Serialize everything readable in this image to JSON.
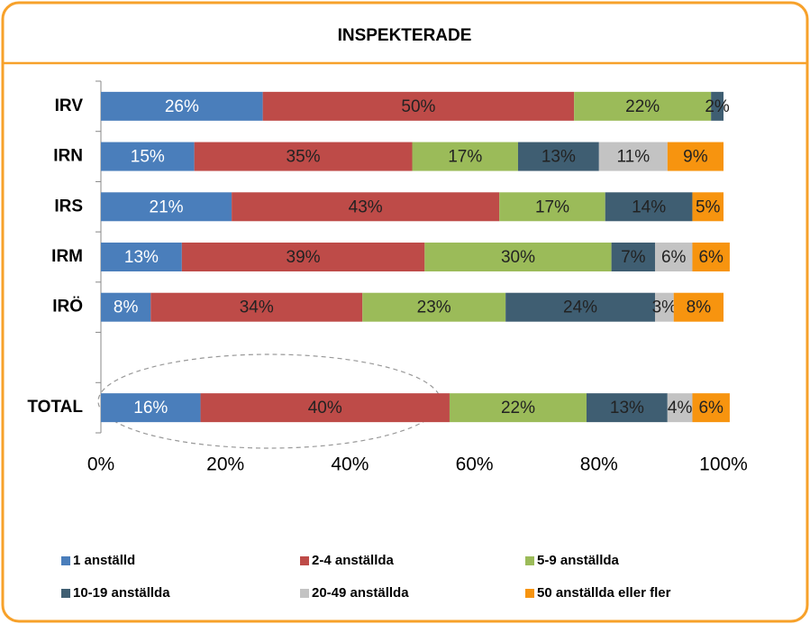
{
  "chart_data": {
    "type": "stacked_bar_horizontal",
    "title": "INSPEKTERADE",
    "categories": [
      "IRV",
      "IRN",
      "IRS",
      "IRM",
      "IRÖ",
      null,
      "TOTAL"
    ],
    "series": [
      {
        "name": "1 anställd",
        "color": "#4a7ebb",
        "values": [
          26,
          15,
          21,
          13,
          8,
          null,
          16
        ],
        "value_labels": [
          "26%",
          "15%",
          "21%",
          "13%",
          "8%",
          null,
          "16%"
        ]
      },
      {
        "name": "2-4 anställda",
        "color": "#be4b48",
        "values": [
          50,
          35,
          43,
          39,
          34,
          null,
          40
        ],
        "value_labels": [
          "50%",
          "35%",
          "43%",
          "39%",
          "34%",
          null,
          "40%"
        ]
      },
      {
        "name": "5-9 anställda",
        "color": "#9bbb59",
        "values": [
          22,
          17,
          17,
          30,
          23,
          null,
          22
        ],
        "value_labels": [
          "22%",
          "17%",
          "17%",
          "30%",
          "23%",
          null,
          "22%"
        ]
      },
      {
        "name": "10-19 anställda",
        "color": "#3f5e72",
        "values": [
          2,
          13,
          14,
          7,
          24,
          null,
          13
        ],
        "value_labels": [
          "2%",
          "13%",
          "14%",
          "7%",
          "24%",
          null,
          "13%"
        ]
      },
      {
        "name": "20-49 anställda",
        "color": "#c3c3c3",
        "values": [
          null,
          11,
          null,
          6,
          3,
          null,
          4
        ],
        "value_labels": [
          null,
          "11%",
          null,
          "6%",
          "3%",
          null,
          "4%"
        ]
      },
      {
        "name": "50 anställda eller fler",
        "color": "#f7940f",
        "values": [
          null,
          9,
          5,
          6,
          8,
          null,
          6
        ],
        "value_labels": [
          null,
          "9%",
          "5%",
          "6%",
          "8%",
          null,
          "6%"
        ]
      }
    ],
    "xlim": [
      0,
      100
    ],
    "xticks": [
      {
        "value": 0,
        "label": "0%"
      },
      {
        "value": 20,
        "label": "20%"
      },
      {
        "value": 40,
        "label": "40%"
      },
      {
        "value": 60,
        "label": "60%"
      },
      {
        "value": 80,
        "label": "80%"
      },
      {
        "value": 100,
        "label": "100%"
      }
    ]
  }
}
